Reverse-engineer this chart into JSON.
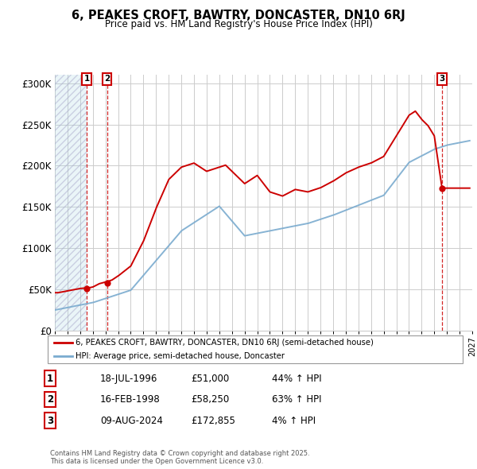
{
  "title": "6, PEAKES CROFT, BAWTRY, DONCASTER, DN10 6RJ",
  "subtitle": "Price paid vs. HM Land Registry's House Price Index (HPI)",
  "xlim_start": 1994.0,
  "xlim_end": 2027.0,
  "ylim": [
    0,
    310000
  ],
  "yticks": [
    0,
    50000,
    100000,
    150000,
    200000,
    250000,
    300000
  ],
  "ytick_labels": [
    "£0",
    "£50K",
    "£100K",
    "£150K",
    "£200K",
    "£250K",
    "£300K"
  ],
  "legend_label_red": "6, PEAKES CROFT, BAWTRY, DONCASTER, DN10 6RJ (semi-detached house)",
  "legend_label_blue": "HPI: Average price, semi-detached house, Doncaster",
  "sale_dates_display": [
    "18-JUL-1996",
    "16-FEB-1998",
    "09-AUG-2024"
  ],
  "sale_prices_display": [
    "£51,000",
    "£58,250",
    "£172,855"
  ],
  "sale_pct_display": [
    "44% ↑ HPI",
    "63% ↑ HPI",
    "4% ↑ HPI"
  ],
  "sale_labels": [
    "1",
    "2",
    "3"
  ],
  "sale_years": [
    1996.54,
    1998.12,
    2024.61
  ],
  "sale_prices": [
    51000,
    58250,
    172855
  ],
  "footer": "Contains HM Land Registry data © Crown copyright and database right 2025.\nThis data is licensed under the Open Government Licence v3.0.",
  "red_color": "#cc0000",
  "blue_color": "#7aabcf",
  "grid_color": "#cccccc",
  "hatch_end_year": 1996.54
}
